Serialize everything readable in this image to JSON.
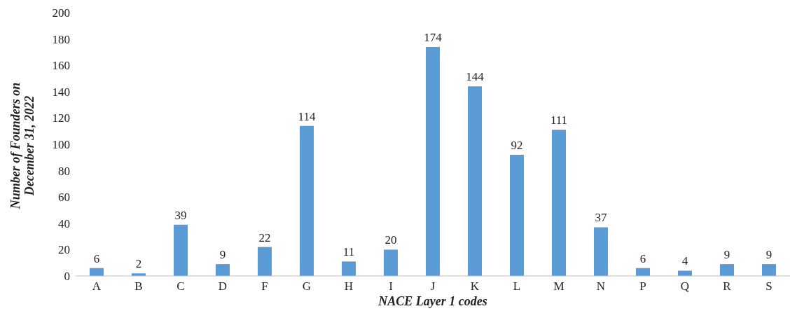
{
  "chart_data": {
    "type": "bar",
    "categories": [
      "A",
      "B",
      "C",
      "D",
      "F",
      "G",
      "H",
      "I",
      "J",
      "K",
      "L",
      "M",
      "N",
      "P",
      "Q",
      "R",
      "S"
    ],
    "values": [
      6,
      2,
      39,
      9,
      22,
      114,
      11,
      20,
      174,
      144,
      92,
      111,
      37,
      6,
      4,
      9,
      9
    ],
    "color": "#5b9bd5",
    "ylim": [
      0,
      200
    ],
    "yticks": [
      0,
      20,
      40,
      60,
      80,
      100,
      120,
      140,
      160,
      180,
      200
    ],
    "ylabel": "Number of Founders  on\nDecember 31, 2022",
    "xlabel": "NACE Layer 1 codes",
    "data_labels": true,
    "grid": false,
    "legend": false
  }
}
